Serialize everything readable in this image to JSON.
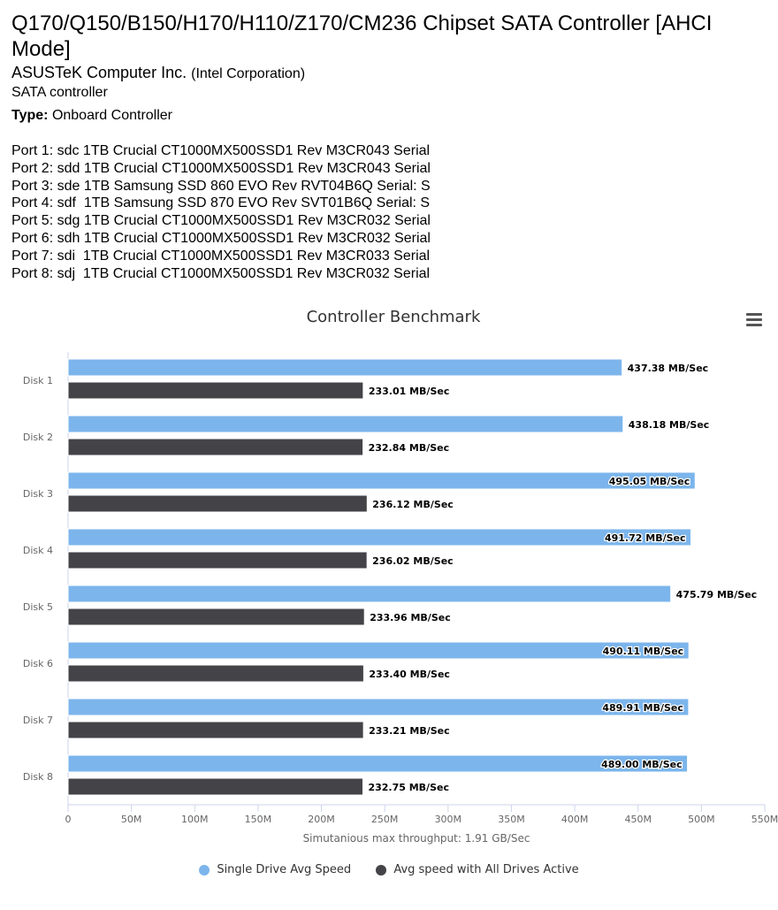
{
  "header": {
    "title": "Q170/Q150/B150/H170/H110/Z170/CM236 Chipset SATA Controller [AHCI Mode]",
    "manufacturer": "ASUSTeK Computer Inc.",
    "manufacturer_sub": "(Intel Corporation)",
    "device_class": "SATA controller",
    "type_label": "Type:",
    "type_value": "Onboard Controller"
  },
  "ports": [
    "Port 1: sdc 1TB Crucial CT1000MX500SSD1 Rev M3CR043 Serial",
    "Port 2: sdd 1TB Crucial CT1000MX500SSD1 Rev M3CR043 Serial",
    "Port 3: sde 1TB Samsung SSD 860 EVO Rev RVT04B6Q Serial: S",
    "Port 4: sdf  1TB Samsung SSD 870 EVO Rev SVT01B6Q Serial: S",
    "Port 5: sdg 1TB Crucial CT1000MX500SSD1 Rev M3CR032 Serial",
    "Port 6: sdh 1TB Crucial CT1000MX500SSD1 Rev M3CR032 Serial",
    "Port 7: sdi  1TB Crucial CT1000MX500SSD1 Rev M3CR033 Serial",
    "Port 8: sdj  1TB Crucial CT1000MX500SSD1 Rev M3CR032 Serial"
  ],
  "chart_data": {
    "type": "bar",
    "orientation": "horizontal",
    "title": "Controller Benchmark",
    "xlabel": "Simutanious max throughput: 1.91 GB/Sec",
    "categories": [
      "Disk 1",
      "Disk 2",
      "Disk 3",
      "Disk 4",
      "Disk 5",
      "Disk 6",
      "Disk 7",
      "Disk 8"
    ],
    "xlim": [
      0,
      550
    ],
    "xticks": [
      0,
      50,
      100,
      150,
      200,
      250,
      300,
      350,
      400,
      450,
      500,
      550
    ],
    "xtick_labels": [
      "0",
      "50M",
      "100M",
      "150M",
      "200M",
      "250M",
      "300M",
      "350M",
      "400M",
      "450M",
      "500M",
      "550M"
    ],
    "value_suffix": " MB/Sec",
    "series": [
      {
        "name": "Single Drive Avg Speed",
        "color": "#7cb5ec",
        "values": [
          437.38,
          438.18,
          495.05,
          491.72,
          475.79,
          490.11,
          489.91,
          489.0
        ],
        "labels": [
          "437.38 MB/Sec",
          "438.18 MB/Sec",
          "495.05 MB/Sec",
          "491.72 MB/Sec",
          "475.79 MB/Sec",
          "490.11 MB/Sec",
          "489.91 MB/Sec",
          "489.00 MB/Sec"
        ]
      },
      {
        "name": "Avg speed with All Drives Active",
        "color": "#434348",
        "values": [
          233.01,
          232.84,
          236.12,
          236.02,
          233.96,
          233.4,
          233.21,
          232.75
        ],
        "labels": [
          "233.01 MB/Sec",
          "232.84 MB/Sec",
          "236.12 MB/Sec",
          "236.02 MB/Sec",
          "233.96 MB/Sec",
          "233.40 MB/Sec",
          "233.21 MB/Sec",
          "232.75 MB/Sec"
        ]
      }
    ],
    "legend_position": "bottom-center",
    "grid": false
  }
}
